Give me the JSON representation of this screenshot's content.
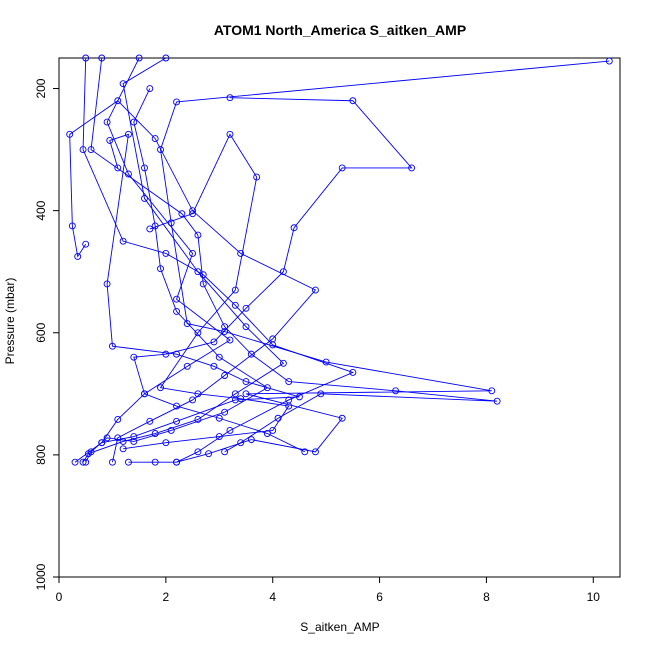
{
  "chart_data": {
    "type": "scatter",
    "title": "ATOM1 North_America S_aitken_AMP",
    "xlabel": "S_aitken_AMP",
    "ylabel": "Pressure (mbar)",
    "xlim": [
      0,
      10.5
    ],
    "ylim": [
      1000,
      150
    ],
    "y_reversed": true,
    "xticks": [
      0,
      2,
      4,
      6,
      8,
      10
    ],
    "yticks": [
      200,
      400,
      600,
      800,
      1000
    ],
    "grid": false,
    "color": "#0000FF",
    "marker": "open-circle",
    "connected": true,
    "series": [
      {
        "points": [
          [
            0.3,
            812
          ],
          [
            0.8,
            780
          ],
          [
            1.1,
            742
          ],
          [
            1.6,
            700
          ],
          [
            2.4,
            655
          ],
          [
            3.2,
            612
          ],
          [
            2.2,
            545
          ],
          [
            2.5,
            470
          ],
          [
            1.3,
            340
          ],
          [
            0.9,
            255
          ],
          [
            1.5,
            150
          ]
        ]
      },
      {
        "points": [
          [
            0.45,
            812
          ],
          [
            0.55,
            798
          ],
          [
            1.2,
            778
          ],
          [
            1.8,
            765
          ],
          [
            2.6,
            742
          ],
          [
            3.3,
            700
          ],
          [
            4.2,
            650
          ],
          [
            3.5,
            590
          ],
          [
            2.6,
            500
          ],
          [
            1.6,
            380
          ],
          [
            1.2,
            192
          ],
          [
            2.0,
            150
          ]
        ]
      },
      {
        "points": [
          [
            0.5,
            812
          ],
          [
            0.6,
            795
          ],
          [
            0.9,
            772
          ],
          [
            1.4,
            778
          ],
          [
            2.1,
            760
          ],
          [
            3.1,
            730
          ],
          [
            3.9,
            690
          ],
          [
            3.0,
            640
          ],
          [
            2.2,
            565
          ],
          [
            1.9,
            495
          ],
          [
            1.8,
            425
          ],
          [
            1.6,
            330
          ],
          [
            1.4,
            255
          ],
          [
            1.7,
            200
          ]
        ]
      },
      {
        "points": [
          [
            1.3,
            812
          ],
          [
            1.8,
            812
          ],
          [
            2.2,
            812
          ],
          [
            2.6,
            795
          ],
          [
            3.2,
            760
          ],
          [
            4.3,
            710
          ],
          [
            5.5,
            665
          ],
          [
            4.0,
            620
          ],
          [
            3.3,
            555
          ],
          [
            2.7,
            505
          ],
          [
            2.0,
            470
          ],
          [
            1.2,
            450
          ],
          [
            0.45,
            300
          ],
          [
            0.5,
            150
          ]
        ]
      },
      {
        "points": [
          [
            2.2,
            812
          ],
          [
            2.8,
            798
          ],
          [
            3.6,
            775
          ],
          [
            4.8,
            795
          ],
          [
            5.3,
            740
          ],
          [
            3.5,
            700
          ],
          [
            8.1,
            695
          ],
          [
            5.0,
            648
          ],
          [
            3.1,
            598
          ],
          [
            2.4,
            585
          ],
          [
            2.1,
            420
          ],
          [
            1.9,
            300
          ],
          [
            2.2,
            222
          ],
          [
            10.3,
            155
          ]
        ]
      },
      {
        "points": [
          [
            3.1,
            795
          ],
          [
            3.4,
            780
          ],
          [
            4.1,
            740
          ],
          [
            4.9,
            700
          ],
          [
            8.2,
            712
          ],
          [
            6.3,
            695
          ],
          [
            4.3,
            680
          ],
          [
            3.6,
            635
          ],
          [
            3.1,
            590
          ],
          [
            2.7,
            520
          ],
          [
            2.6,
            440
          ],
          [
            2.3,
            405
          ],
          [
            0.6,
            300
          ],
          [
            0.8,
            150
          ]
        ]
      },
      {
        "points": [
          [
            4.6,
            795
          ],
          [
            3.9,
            765
          ],
          [
            3.0,
            740
          ],
          [
            2.2,
            720
          ],
          [
            1.6,
            700
          ],
          [
            1.4,
            640
          ],
          [
            2.0,
            635
          ],
          [
            2.9,
            615
          ],
          [
            3.5,
            560
          ],
          [
            4.2,
            500
          ],
          [
            4.4,
            428
          ],
          [
            5.3,
            330
          ],
          [
            6.6,
            330
          ],
          [
            5.5,
            220
          ],
          [
            3.2,
            215
          ]
        ]
      },
      {
        "points": [
          [
            1.0,
            812
          ],
          [
            1.1,
            772
          ],
          [
            1.7,
            745
          ],
          [
            2.5,
            710
          ],
          [
            3.1,
            670
          ],
          [
            4.0,
            610
          ],
          [
            4.8,
            530
          ],
          [
            3.4,
            470
          ],
          [
            2.5,
            400
          ],
          [
            1.8,
            282
          ],
          [
            1.1,
            220
          ],
          [
            0.2,
            275
          ],
          [
            0.25,
            425
          ],
          [
            0.35,
            475
          ],
          [
            0.5,
            455
          ]
        ]
      },
      {
        "points": [
          [
            0.8,
            780
          ],
          [
            1.4,
            770
          ],
          [
            2.2,
            745
          ],
          [
            3.3,
            710
          ],
          [
            4.5,
            705
          ],
          [
            3.5,
            680
          ],
          [
            2.9,
            655
          ],
          [
            2.2,
            635
          ],
          [
            1.0,
            622
          ],
          [
            0.9,
            520
          ],
          [
            1.3,
            275
          ],
          [
            0.95,
            285
          ],
          [
            1.1,
            330
          ]
        ]
      },
      {
        "points": [
          [
            1.2,
            790
          ],
          [
            2.0,
            780
          ],
          [
            3.0,
            770
          ],
          [
            4.0,
            760
          ],
          [
            4.3,
            720
          ],
          [
            3.4,
            708
          ],
          [
            2.6,
            700
          ],
          [
            1.9,
            690
          ],
          [
            2.6,
            600
          ],
          [
            3.3,
            530
          ],
          [
            3.7,
            345
          ],
          [
            3.2,
            275
          ],
          [
            2.5,
            405
          ],
          [
            1.7,
            430
          ]
        ]
      }
    ]
  }
}
